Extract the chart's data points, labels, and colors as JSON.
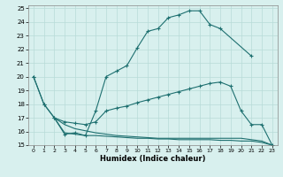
{
  "xlabel": "Humidex (Indice chaleur)",
  "xlim": [
    -0.5,
    23.5
  ],
  "ylim": [
    15,
    25.2
  ],
  "yticks": [
    15,
    16,
    17,
    18,
    19,
    20,
    21,
    22,
    23,
    24,
    25
  ],
  "xticks": [
    0,
    1,
    2,
    3,
    4,
    5,
    6,
    7,
    8,
    9,
    10,
    11,
    12,
    13,
    14,
    15,
    16,
    17,
    18,
    19,
    20,
    21,
    22,
    23
  ],
  "line_color": "#1e7070",
  "bg_color": "#d8f0ee",
  "grid_color": "#b8dbd8",
  "line1_x": [
    0,
    1,
    2,
    3,
    4,
    5,
    6,
    7,
    8,
    9,
    10,
    11,
    12,
    13,
    14,
    15,
    16,
    17,
    18,
    21
  ],
  "line1_y": [
    20,
    18,
    17,
    15.8,
    15.9,
    15.7,
    17.5,
    20.0,
    20.4,
    20.8,
    22.1,
    23.3,
    23.5,
    24.3,
    24.5,
    24.8,
    24.8,
    23.8,
    23.5,
    21.5
  ],
  "line2_x": [
    0,
    1,
    2,
    3,
    4,
    5,
    6,
    7,
    8,
    9,
    10,
    11,
    12,
    13,
    14,
    15,
    16,
    17,
    18,
    19,
    20,
    21,
    22,
    23
  ],
  "line2_y": [
    20,
    18,
    17.0,
    16.7,
    16.6,
    16.5,
    16.7,
    17.5,
    17.7,
    17.85,
    18.1,
    18.3,
    18.5,
    18.7,
    18.9,
    19.1,
    19.3,
    19.5,
    19.6,
    19.3,
    17.5,
    16.5,
    16.5,
    15.0
  ],
  "line3_x": [
    2,
    3,
    4,
    5,
    6,
    7,
    8,
    9,
    10,
    11,
    12,
    13,
    14,
    15,
    16,
    17,
    18,
    19,
    20,
    21,
    22,
    23
  ],
  "line3_y": [
    17.0,
    16.5,
    16.2,
    16.05,
    15.9,
    15.8,
    15.7,
    15.65,
    15.6,
    15.55,
    15.5,
    15.5,
    15.5,
    15.5,
    15.5,
    15.5,
    15.5,
    15.5,
    15.5,
    15.4,
    15.3,
    15.0
  ],
  "line4_x": [
    2,
    3,
    4,
    5,
    6,
    7,
    8,
    9,
    10,
    11,
    12,
    13,
    14,
    15,
    16,
    17,
    18,
    19,
    20,
    21,
    22,
    23
  ],
  "line4_y": [
    17.0,
    15.9,
    15.8,
    15.7,
    15.7,
    15.65,
    15.6,
    15.55,
    15.5,
    15.5,
    15.45,
    15.45,
    15.4,
    15.4,
    15.4,
    15.4,
    15.35,
    15.35,
    15.3,
    15.3,
    15.2,
    15.0
  ]
}
